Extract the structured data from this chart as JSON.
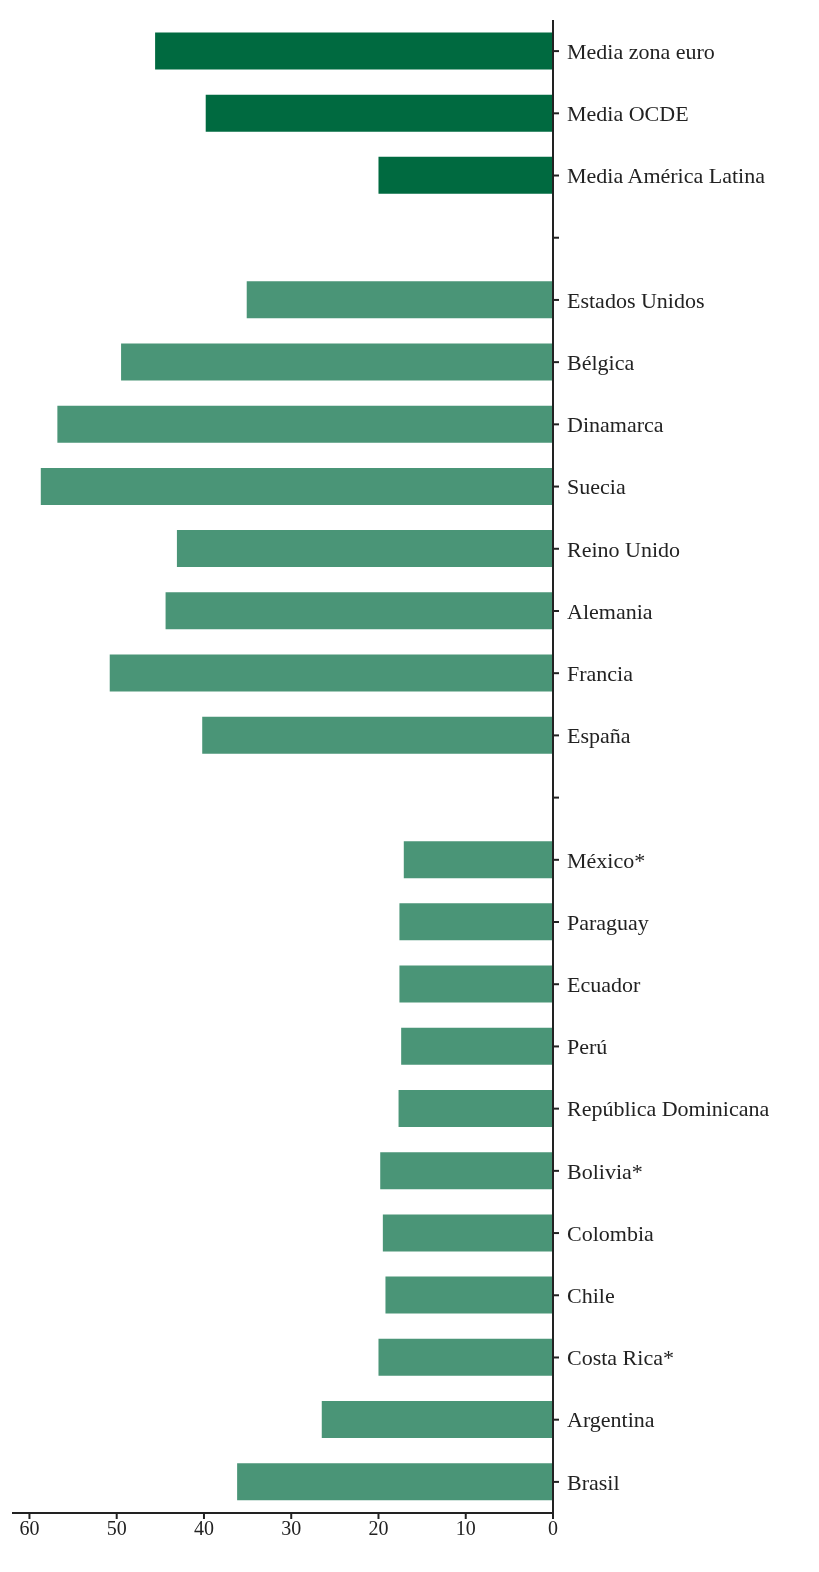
{
  "chart_data": {
    "type": "bar",
    "orientation": "horizontal",
    "categories": [
      "Media zona euro",
      "Media OCDE",
      "Media América Latina",
      null,
      "Estados Unidos",
      "Bélgica",
      "Dinamarca",
      "Suecia",
      "Reino Unido",
      "Alemania",
      "Francia",
      "España",
      null,
      "México*",
      "Paraguay",
      "Ecuador",
      "Perú",
      "República Dominicana",
      "Bolivia*",
      "Colombia",
      "Chile",
      "Costa Rica*",
      "Argentina",
      "Brasil"
    ],
    "values": [
      45.6,
      39.8,
      20.0,
      null,
      35.1,
      49.5,
      56.8,
      58.7,
      43.1,
      44.4,
      50.8,
      40.2,
      null,
      17.1,
      17.6,
      17.6,
      17.4,
      17.7,
      19.8,
      19.5,
      19.2,
      20.0,
      26.5,
      36.2
    ],
    "colors": [
      "#006a40",
      "#006a40",
      "#006a40",
      null,
      "#4a9577",
      "#4a9577",
      "#4a9577",
      "#4a9577",
      "#4a9577",
      "#4a9577",
      "#4a9577",
      "#4a9577",
      null,
      "#4a9577",
      "#4a9577",
      "#4a9577",
      "#4a9577",
      "#4a9577",
      "#4a9577",
      "#4a9577",
      "#4a9577",
      "#4a9577",
      "#4a9577",
      "#4a9577"
    ],
    "xlim": [
      62,
      0
    ],
    "xticks": [
      60,
      50,
      40,
      30,
      20,
      10,
      0
    ],
    "grid": false
  }
}
